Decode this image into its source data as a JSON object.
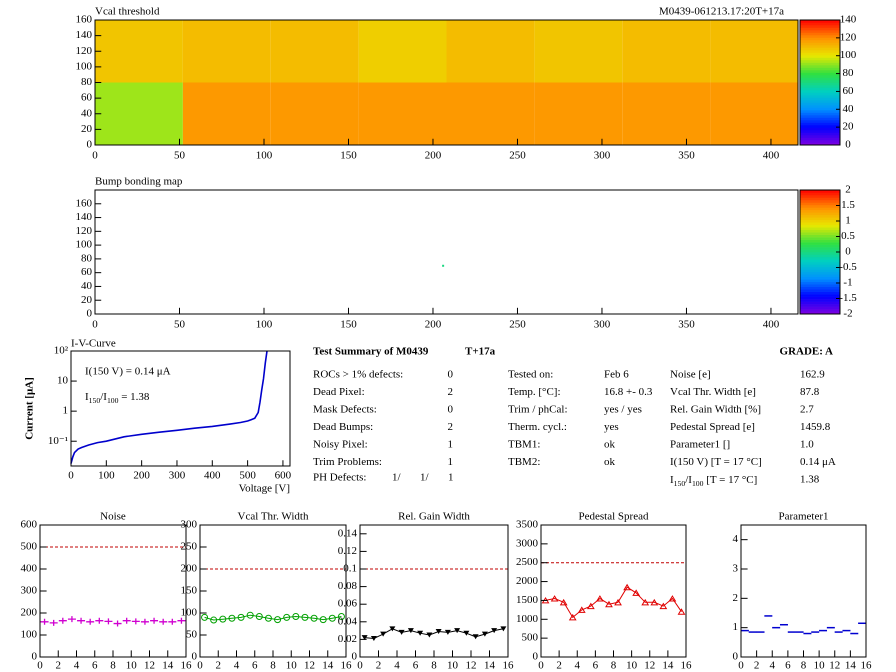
{
  "chart_data": [
    {
      "type": "heatmap",
      "title": "Vcal threshold",
      "subtitle": "M0439-061213.17:20T+17a",
      "xbins": [
        0,
        52,
        104,
        156,
        208,
        260,
        312,
        364,
        416
      ],
      "ybins": [
        0,
        80,
        160
      ],
      "values": [
        [
          92,
          118,
          118,
          118,
          118,
          118,
          118,
          118
        ],
        [
          108,
          110,
          110,
          106,
          110,
          108,
          110,
          110
        ]
      ],
      "xlim": [
        0,
        416
      ],
      "ylim": [
        0,
        160
      ],
      "xticks": [
        0,
        50,
        100,
        150,
        200,
        250,
        300,
        350,
        400
      ],
      "yticks": [
        0,
        20,
        40,
        60,
        80,
        100,
        120,
        140,
        160
      ],
      "zlim": [
        0,
        140
      ],
      "zticks": [
        0,
        20,
        40,
        60,
        80,
        100,
        120,
        140
      ],
      "palette": [
        "#8000e0",
        "#0000ff",
        "#0090ff",
        "#00d0c0",
        "#30e040",
        "#e8e800",
        "#ff9000",
        "#ff0000"
      ]
    },
    {
      "type": "scatter-map",
      "title": "Bump bonding map",
      "points": {
        "x": [
          206
        ],
        "y": [
          70
        ],
        "z": [
          0
        ]
      },
      "xlim": [
        0,
        416
      ],
      "ylim": [
        0,
        180
      ],
      "xticks": [
        0,
        50,
        100,
        150,
        200,
        250,
        300,
        350,
        400
      ],
      "yticks": [
        0,
        20,
        40,
        60,
        80,
        100,
        120,
        140,
        160
      ],
      "zlim": [
        -2,
        2
      ],
      "zticks": [
        -2,
        -1.5,
        -1,
        -0.5,
        0,
        0.5,
        1,
        1.5,
        2
      ],
      "palette": [
        "#8000e0",
        "#0000ff",
        "#0090ff",
        "#00d0c0",
        "#30e040",
        "#e8e800",
        "#ff9000",
        "#ff0000"
      ]
    },
    {
      "type": "line",
      "title": "I-V-Curve",
      "xlabel": "Voltage [V]",
      "ylabel": "Current [μA]",
      "log_y": true,
      "annotations": [
        "I(150 V) = 0.14 μA",
        [
          {
            "t": "I"
          },
          {
            "t": "150",
            "sub": true
          },
          {
            "t": "/I"
          },
          {
            "t": "100",
            "sub": true
          },
          {
            "t": " =  1.38"
          }
        ]
      ],
      "x": [
        0,
        5,
        10,
        20,
        30,
        50,
        75,
        100,
        150,
        200,
        250,
        300,
        350,
        400,
        450,
        480,
        500,
        510,
        520,
        530,
        535,
        540,
        545,
        550,
        555
      ],
      "values": [
        0.018,
        0.03,
        0.042,
        0.055,
        0.062,
        0.075,
        0.09,
        0.1,
        0.14,
        0.17,
        0.2,
        0.23,
        0.27,
        0.31,
        0.37,
        0.42,
        0.47,
        0.52,
        0.58,
        0.9,
        2,
        5,
        12,
        40,
        100
      ],
      "color": "#0000cc",
      "xlim": [
        0,
        620
      ],
      "ylim": [
        0.015,
        100
      ],
      "xticks": [
        0,
        100,
        200,
        300,
        400,
        500,
        600
      ],
      "yticks": [
        {
          "value": 0.1,
          "label": "10⁻¹"
        },
        1,
        10,
        {
          "value": 100,
          "label": "10²"
        }
      ]
    },
    {
      "type": "markers",
      "title": "Noise",
      "marker": "cross",
      "connect": false,
      "color": "#d000d0",
      "reference_line": 500,
      "x": [
        0.5,
        1.5,
        2.5,
        3.5,
        4.5,
        5.5,
        6.5,
        7.5,
        8.5,
        9.5,
        10.5,
        11.5,
        12.5,
        13.5,
        14.5,
        15.5
      ],
      "values": [
        160,
        155,
        165,
        172,
        165,
        160,
        165,
        162,
        152,
        165,
        162,
        160,
        165,
        160,
        160,
        165
      ],
      "xlim": [
        0,
        16
      ],
      "ylim": [
        0,
        600
      ],
      "xticks": [
        0,
        2,
        4,
        6,
        8,
        10,
        12,
        14,
        16
      ],
      "yticks": [
        0,
        100,
        200,
        300,
        400,
        500,
        600
      ]
    },
    {
      "type": "markers",
      "title": "Vcal Thr. Width",
      "marker": "circle",
      "connect": true,
      "color": "#00a000",
      "reference_line": 200,
      "x": [
        0.5,
        1.5,
        2.5,
        3.5,
        4.5,
        5.5,
        6.5,
        7.5,
        8.5,
        9.5,
        10.5,
        11.5,
        12.5,
        13.5,
        14.5,
        15.5
      ],
      "values": [
        90,
        84,
        86,
        88,
        90,
        95,
        92,
        88,
        85,
        90,
        92,
        90,
        88,
        85,
        88,
        92
      ],
      "xlim": [
        0,
        16
      ],
      "ylim": [
        0,
        300
      ],
      "xticks": [
        0,
        2,
        4,
        6,
        8,
        10,
        12,
        14,
        16
      ],
      "yticks": [
        0,
        50,
        100,
        150,
        200,
        250,
        300
      ]
    },
    {
      "type": "markers",
      "title": "Rel. Gain Width",
      "marker": "triangle-down",
      "connect": true,
      "color": "#000000",
      "reference_line": 0.1,
      "x": [
        0.5,
        1.5,
        2.5,
        3.5,
        4.5,
        5.5,
        6.5,
        7.5,
        8.5,
        9.5,
        10.5,
        11.5,
        12.5,
        13.5,
        14.5,
        15.5
      ],
      "values": [
        0.022,
        0.021,
        0.026,
        0.032,
        0.028,
        0.03,
        0.027,
        0.025,
        0.029,
        0.028,
        0.03,
        0.027,
        0.023,
        0.026,
        0.03,
        0.032
      ],
      "xlim": [
        0,
        16
      ],
      "ylim": [
        0,
        0.15
      ],
      "xticks": [
        0,
        2,
        4,
        6,
        8,
        10,
        12,
        14,
        16
      ],
      "yticks": [
        0,
        0.02,
        0.04,
        0.06,
        0.08,
        0.1,
        0.12,
        0.14
      ]
    },
    {
      "type": "markers",
      "title": "Pedestal Spread",
      "marker": "triangle-up",
      "connect": true,
      "color": "#e00000",
      "reference_line": 2500,
      "x": [
        0.5,
        1.5,
        2.5,
        3.5,
        4.5,
        5.5,
        6.5,
        7.5,
        8.5,
        9.5,
        10.5,
        11.5,
        12.5,
        13.5,
        14.5,
        15.5
      ],
      "values": [
        1500,
        1550,
        1450,
        1050,
        1250,
        1350,
        1550,
        1400,
        1450,
        1850,
        1700,
        1450,
        1450,
        1350,
        1550,
        1200
      ],
      "xlim": [
        0,
        16
      ],
      "ylim": [
        0,
        3500
      ],
      "xticks": [
        0,
        2,
        4,
        6,
        8,
        10,
        12,
        14,
        16
      ],
      "yticks": [
        0,
        500,
        1000,
        1500,
        2000,
        2500,
        3000,
        3500
      ]
    },
    {
      "type": "markers",
      "title": "Parameter1",
      "marker": "dash",
      "connect": false,
      "color": "#0000d0",
      "x": [
        0.5,
        1.5,
        2.5,
        3.5,
        4.5,
        5.5,
        6.5,
        7.5,
        8.5,
        9.5,
        10.5,
        11.5,
        12.5,
        13.5,
        14.5,
        15.5
      ],
      "values": [
        0.9,
        0.85,
        0.85,
        1.4,
        1.0,
        1.1,
        0.85,
        0.85,
        0.8,
        0.85,
        0.9,
        1.0,
        0.85,
        0.9,
        0.8,
        1.15
      ],
      "xlim": [
        0,
        16
      ],
      "ylim": [
        0,
        4.5
      ],
      "xticks": [
        0,
        2,
        4,
        6,
        8,
        10,
        12,
        14,
        16
      ],
      "yticks": [
        0,
        1,
        2,
        3,
        4
      ]
    }
  ],
  "summary": {
    "title": "Test Summary of M0439",
    "tag": "T+17a",
    "grade": "GRADE:  A",
    "left": [
      [
        "ROCs > 1% defects:",
        "0"
      ],
      [
        "Dead Pixel:",
        "2"
      ],
      [
        "Mask Defects:",
        "0"
      ],
      [
        "Dead Bumps:",
        "2"
      ],
      [
        "Noisy Pixel:",
        "1"
      ],
      [
        "Trim Problems:",
        "1"
      ]
    ],
    "ph": {
      "label": "PH Defects:",
      "parts": [
        {
          "t": "1/",
          "color": "#000000"
        },
        {
          "t": "1/",
          "color": "#e00000"
        },
        {
          "t": "1",
          "color": "#0000e0"
        }
      ]
    },
    "middle": [
      [
        "Tested on:",
        "Feb 6"
      ],
      [
        "Temp. [°C]:",
        "16.8 +- 0.3"
      ],
      [
        "Trim / phCal:",
        "yes / yes"
      ],
      [
        "Therm. cycl.:",
        "yes"
      ],
      [
        "TBM1:",
        "ok"
      ],
      [
        "TBM2:",
        "ok"
      ]
    ],
    "right": [
      [
        "Noise [e]",
        "162.9"
      ],
      [
        "Vcal Thr. Width [e]",
        "87.8"
      ],
      [
        "Rel. Gain Width [%]",
        "2.7"
      ],
      [
        "Pedestal Spread [e]",
        "1459.8"
      ],
      [
        "Parameter1 []",
        "1.0"
      ],
      [
        "I(150 V) [T = 17 °C]",
        "0.14 μA"
      ],
      [
        [
          {
            "t": "I"
          },
          {
            "t": "150",
            "sub": true
          },
          {
            "t": "/I"
          },
          {
            "t": "100",
            "sub": true
          },
          {
            "t": "  [T = 17 °C]"
          }
        ],
        "1.38"
      ]
    ]
  }
}
